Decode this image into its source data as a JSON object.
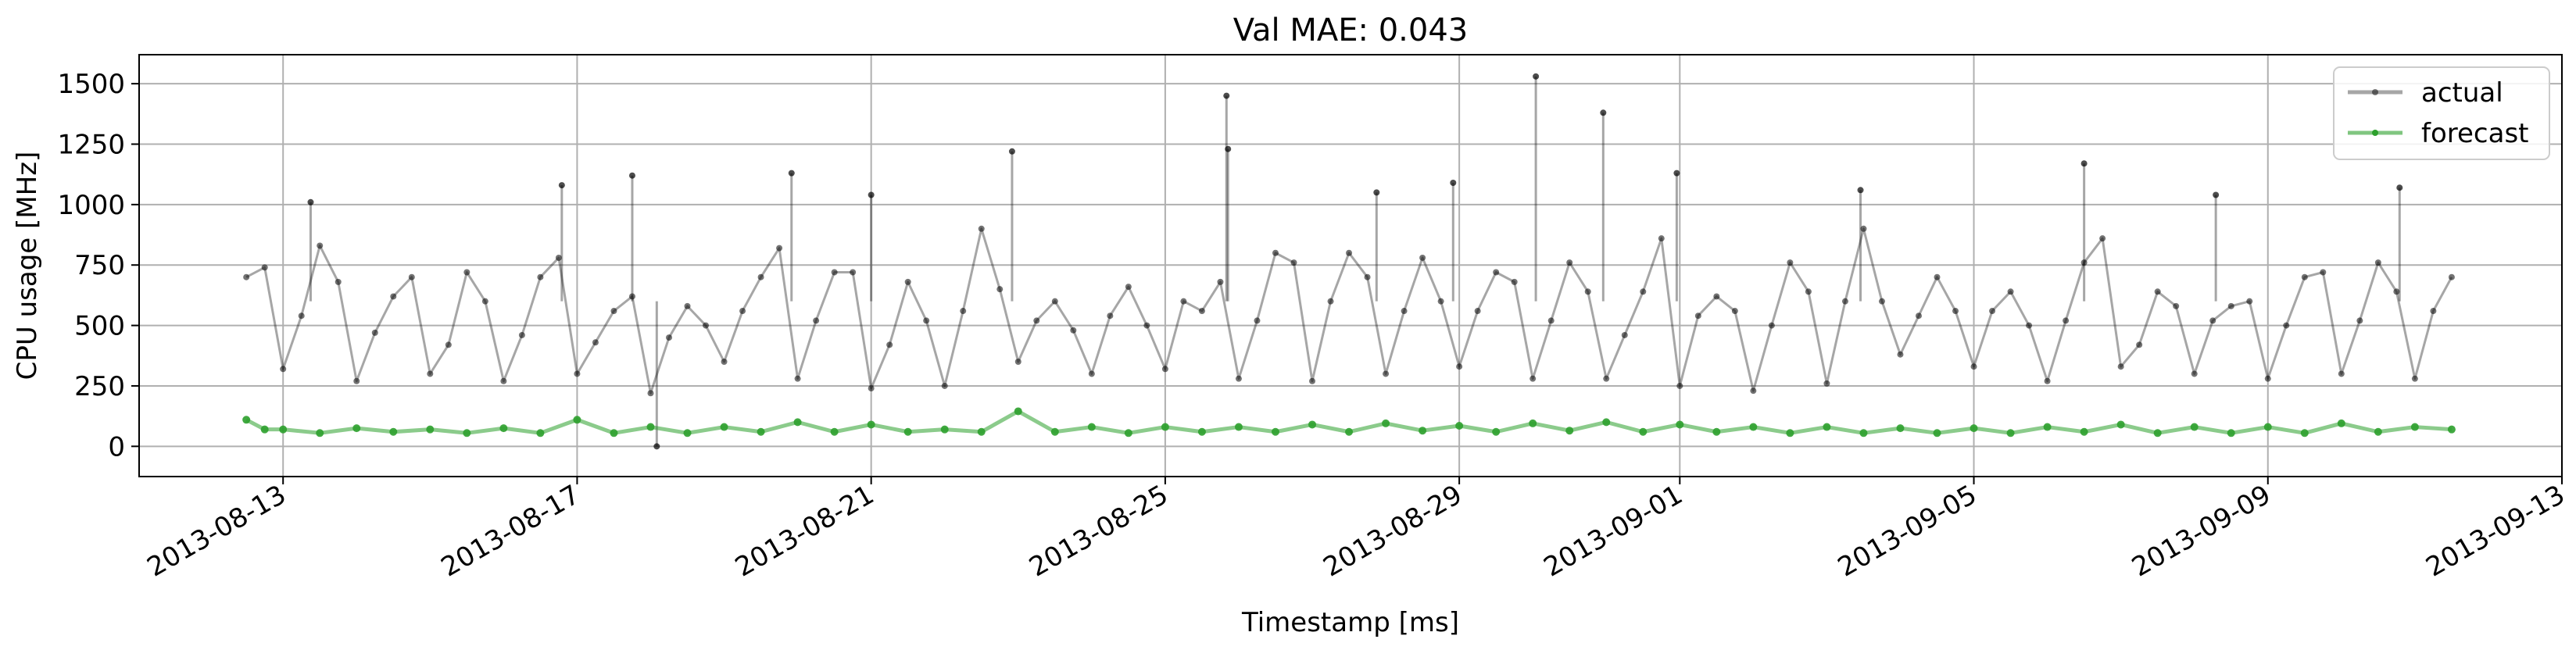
{
  "chart_data": {
    "type": "line",
    "title": "Val MAE: 0.043",
    "xlabel": "Timestamp [ms]",
    "ylabel": "CPU usage [MHz]",
    "x_range": [
      "2013-08-11T01:00",
      "2013-09-13T00:00"
    ],
    "ylim": [
      -125,
      1620
    ],
    "y_ticks": [
      0,
      250,
      500,
      750,
      1000,
      1250,
      1500
    ],
    "x_ticks": [
      "2013-08-13",
      "2013-08-17",
      "2013-08-21",
      "2013-08-25",
      "2013-08-29",
      "2013-09-01",
      "2013-09-05",
      "2013-09-09",
      "2013-09-13"
    ],
    "grid": true,
    "legend_position": "top-right",
    "colors": {
      "actual": "#000000",
      "forecast": "#2ca02c"
    },
    "series": [
      {
        "name": "actual",
        "style": "line-with-markers",
        "note_ranges": "daily oscillation",
        "points": [
          [
            "2013-08-12T12:00",
            700
          ],
          [
            "2013-08-12T18:00",
            740
          ],
          [
            "2013-08-13T00:00",
            320
          ],
          [
            "2013-08-13T06:00",
            540
          ],
          [
            "2013-08-13T12:00",
            830
          ],
          [
            "2013-08-13T18:00",
            680
          ],
          [
            "2013-08-14T00:00",
            270
          ],
          [
            "2013-08-14T06:00",
            470
          ],
          [
            "2013-08-14T12:00",
            620
          ],
          [
            "2013-08-14T18:00",
            700
          ],
          [
            "2013-08-15T00:00",
            300
          ],
          [
            "2013-08-15T06:00",
            420
          ],
          [
            "2013-08-15T12:00",
            720
          ],
          [
            "2013-08-15T18:00",
            600
          ],
          [
            "2013-08-16T00:00",
            270
          ],
          [
            "2013-08-16T06:00",
            460
          ],
          [
            "2013-08-16T12:00",
            700
          ],
          [
            "2013-08-16T18:00",
            780
          ],
          [
            "2013-08-17T00:00",
            300
          ],
          [
            "2013-08-17T06:00",
            430
          ],
          [
            "2013-08-17T12:00",
            560
          ],
          [
            "2013-08-17T18:00",
            620
          ],
          [
            "2013-08-18T00:00",
            220
          ],
          [
            "2013-08-18T06:00",
            450
          ],
          [
            "2013-08-18T12:00",
            580
          ],
          [
            "2013-08-18T18:00",
            500
          ],
          [
            "2013-08-19T00:00",
            350
          ],
          [
            "2013-08-19T06:00",
            560
          ],
          [
            "2013-08-19T12:00",
            700
          ],
          [
            "2013-08-19T18:00",
            820
          ],
          [
            "2013-08-20T00:00",
            280
          ],
          [
            "2013-08-20T06:00",
            520
          ],
          [
            "2013-08-20T12:00",
            720
          ],
          [
            "2013-08-20T18:00",
            720
          ],
          [
            "2013-08-21T00:00",
            240
          ],
          [
            "2013-08-21T06:00",
            420
          ],
          [
            "2013-08-21T12:00",
            680
          ],
          [
            "2013-08-21T18:00",
            520
          ],
          [
            "2013-08-22T00:00",
            250
          ],
          [
            "2013-08-22T06:00",
            560
          ],
          [
            "2013-08-22T12:00",
            900
          ],
          [
            "2013-08-22T18:00",
            650
          ],
          [
            "2013-08-23T00:00",
            350
          ],
          [
            "2013-08-23T06:00",
            520
          ],
          [
            "2013-08-23T12:00",
            600
          ],
          [
            "2013-08-23T18:00",
            480
          ],
          [
            "2013-08-24T00:00",
            300
          ],
          [
            "2013-08-24T06:00",
            540
          ],
          [
            "2013-08-24T12:00",
            660
          ],
          [
            "2013-08-24T18:00",
            500
          ],
          [
            "2013-08-25T00:00",
            320
          ],
          [
            "2013-08-25T06:00",
            600
          ],
          [
            "2013-08-25T12:00",
            560
          ],
          [
            "2013-08-25T18:00",
            680
          ],
          [
            "2013-08-26T00:00",
            280
          ],
          [
            "2013-08-26T06:00",
            520
          ],
          [
            "2013-08-26T12:00",
            800
          ],
          [
            "2013-08-26T18:00",
            760
          ],
          [
            "2013-08-27T00:00",
            270
          ],
          [
            "2013-08-27T06:00",
            600
          ],
          [
            "2013-08-27T12:00",
            800
          ],
          [
            "2013-08-27T18:00",
            700
          ],
          [
            "2013-08-28T00:00",
            300
          ],
          [
            "2013-08-28T06:00",
            560
          ],
          [
            "2013-08-28T12:00",
            780
          ],
          [
            "2013-08-28T18:00",
            600
          ],
          [
            "2013-08-29T00:00",
            330
          ],
          [
            "2013-08-29T06:00",
            560
          ],
          [
            "2013-08-29T12:00",
            720
          ],
          [
            "2013-08-29T18:00",
            680
          ],
          [
            "2013-08-30T00:00",
            280
          ],
          [
            "2013-08-30T06:00",
            520
          ],
          [
            "2013-08-30T12:00",
            760
          ],
          [
            "2013-08-30T18:00",
            640
          ],
          [
            "2013-08-31T00:00",
            280
          ],
          [
            "2013-08-31T06:00",
            460
          ],
          [
            "2013-08-31T12:00",
            640
          ],
          [
            "2013-08-31T18:00",
            860
          ],
          [
            "2013-09-01T00:00",
            250
          ],
          [
            "2013-09-01T06:00",
            540
          ],
          [
            "2013-09-01T12:00",
            620
          ],
          [
            "2013-09-01T18:00",
            560
          ],
          [
            "2013-09-02T00:00",
            230
          ],
          [
            "2013-09-02T06:00",
            500
          ],
          [
            "2013-09-02T12:00",
            760
          ],
          [
            "2013-09-02T18:00",
            640
          ],
          [
            "2013-09-03T00:00",
            260
          ],
          [
            "2013-09-03T06:00",
            600
          ],
          [
            "2013-09-03T12:00",
            900
          ],
          [
            "2013-09-03T18:00",
            600
          ],
          [
            "2013-09-04T00:00",
            380
          ],
          [
            "2013-09-04T06:00",
            540
          ],
          [
            "2013-09-04T12:00",
            700
          ],
          [
            "2013-09-04T18:00",
            560
          ],
          [
            "2013-09-05T00:00",
            330
          ],
          [
            "2013-09-05T06:00",
            560
          ],
          [
            "2013-09-05T12:00",
            640
          ],
          [
            "2013-09-05T18:00",
            500
          ],
          [
            "2013-09-06T00:00",
            270
          ],
          [
            "2013-09-06T06:00",
            520
          ],
          [
            "2013-09-06T12:00",
            760
          ],
          [
            "2013-09-06T18:00",
            860
          ],
          [
            "2013-09-07T00:00",
            330
          ],
          [
            "2013-09-07T06:00",
            420
          ],
          [
            "2013-09-07T12:00",
            640
          ],
          [
            "2013-09-07T18:00",
            580
          ],
          [
            "2013-09-08T00:00",
            300
          ],
          [
            "2013-09-08T06:00",
            520
          ],
          [
            "2013-09-08T12:00",
            580
          ],
          [
            "2013-09-08T18:00",
            600
          ],
          [
            "2013-09-09T00:00",
            280
          ],
          [
            "2013-09-09T06:00",
            500
          ],
          [
            "2013-09-09T12:00",
            700
          ],
          [
            "2013-09-09T18:00",
            720
          ],
          [
            "2013-09-10T00:00",
            300
          ],
          [
            "2013-09-10T06:00",
            520
          ],
          [
            "2013-09-10T12:00",
            760
          ],
          [
            "2013-09-10T18:00",
            640
          ],
          [
            "2013-09-11T00:00",
            280
          ],
          [
            "2013-09-11T06:00",
            560
          ],
          [
            "2013-09-11T12:00",
            700
          ]
        ],
        "spikes": [
          [
            "2013-08-13T09:00",
            1010
          ],
          [
            "2013-08-16T19:00",
            1080
          ],
          [
            "2013-08-17T18:00",
            1120
          ],
          [
            "2013-08-18T02:00",
            0
          ],
          [
            "2013-08-19T22:00",
            1130
          ],
          [
            "2013-08-21T00:00",
            1040
          ],
          [
            "2013-08-22T22:00",
            1220
          ],
          [
            "2013-08-25T20:00",
            1450
          ],
          [
            "2013-08-25T20:30",
            1230
          ],
          [
            "2013-08-27T21:00",
            1050
          ],
          [
            "2013-08-28T22:00",
            1090
          ],
          [
            "2013-08-30T01:00",
            1530
          ],
          [
            "2013-08-30T23:00",
            1380
          ],
          [
            "2013-08-31T23:00",
            1130
          ],
          [
            "2013-09-03T11:00",
            1060
          ],
          [
            "2013-09-06T12:00",
            1170
          ],
          [
            "2013-09-08T07:00",
            1040
          ],
          [
            "2013-09-10T19:00",
            1070
          ]
        ]
      },
      {
        "name": "forecast",
        "style": "line-with-markers",
        "points": [
          [
            "2013-08-12T12:00",
            110
          ],
          [
            "2013-08-12T18:00",
            70
          ],
          [
            "2013-08-13T00:00",
            70
          ],
          [
            "2013-08-13T12:00",
            55
          ],
          [
            "2013-08-14T00:00",
            75
          ],
          [
            "2013-08-14T12:00",
            60
          ],
          [
            "2013-08-15T00:00",
            70
          ],
          [
            "2013-08-15T12:00",
            55
          ],
          [
            "2013-08-16T00:00",
            75
          ],
          [
            "2013-08-16T12:00",
            55
          ],
          [
            "2013-08-17T00:00",
            110
          ],
          [
            "2013-08-17T12:00",
            55
          ],
          [
            "2013-08-18T00:00",
            80
          ],
          [
            "2013-08-18T12:00",
            55
          ],
          [
            "2013-08-19T00:00",
            80
          ],
          [
            "2013-08-19T12:00",
            60
          ],
          [
            "2013-08-20T00:00",
            100
          ],
          [
            "2013-08-20T12:00",
            60
          ],
          [
            "2013-08-21T00:00",
            90
          ],
          [
            "2013-08-21T12:00",
            60
          ],
          [
            "2013-08-22T00:00",
            70
          ],
          [
            "2013-08-22T12:00",
            60
          ],
          [
            "2013-08-23T00:00",
            145
          ],
          [
            "2013-08-23T12:00",
            60
          ],
          [
            "2013-08-24T00:00",
            80
          ],
          [
            "2013-08-24T12:00",
            55
          ],
          [
            "2013-08-25T00:00",
            80
          ],
          [
            "2013-08-25T12:00",
            60
          ],
          [
            "2013-08-26T00:00",
            80
          ],
          [
            "2013-08-26T12:00",
            60
          ],
          [
            "2013-08-27T00:00",
            90
          ],
          [
            "2013-08-27T12:00",
            60
          ],
          [
            "2013-08-28T00:00",
            95
          ],
          [
            "2013-08-28T12:00",
            65
          ],
          [
            "2013-08-29T00:00",
            85
          ],
          [
            "2013-08-29T12:00",
            60
          ],
          [
            "2013-08-30T00:00",
            95
          ],
          [
            "2013-08-30T12:00",
            65
          ],
          [
            "2013-08-31T00:00",
            100
          ],
          [
            "2013-08-31T12:00",
            60
          ],
          [
            "2013-09-01T00:00",
            90
          ],
          [
            "2013-09-01T12:00",
            60
          ],
          [
            "2013-09-02T00:00",
            80
          ],
          [
            "2013-09-02T12:00",
            55
          ],
          [
            "2013-09-03T00:00",
            80
          ],
          [
            "2013-09-03T12:00",
            55
          ],
          [
            "2013-09-04T00:00",
            75
          ],
          [
            "2013-09-04T12:00",
            55
          ],
          [
            "2013-09-05T00:00",
            75
          ],
          [
            "2013-09-05T12:00",
            55
          ],
          [
            "2013-09-06T00:00",
            80
          ],
          [
            "2013-09-06T12:00",
            60
          ],
          [
            "2013-09-07T00:00",
            90
          ],
          [
            "2013-09-07T12:00",
            55
          ],
          [
            "2013-09-08T00:00",
            80
          ],
          [
            "2013-09-08T12:00",
            55
          ],
          [
            "2013-09-09T00:00",
            80
          ],
          [
            "2013-09-09T12:00",
            55
          ],
          [
            "2013-09-10T00:00",
            95
          ],
          [
            "2013-09-10T12:00",
            60
          ],
          [
            "2013-09-11T00:00",
            80
          ],
          [
            "2013-09-11T12:00",
            70
          ]
        ]
      }
    ]
  }
}
